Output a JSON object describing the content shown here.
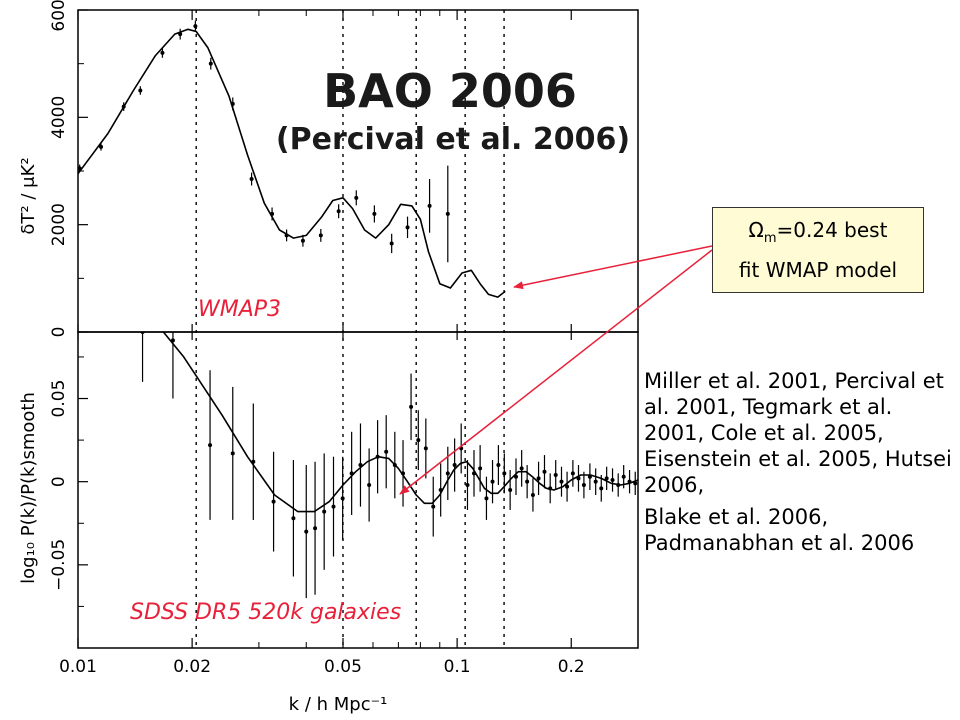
{
  "title": "BAO 2006",
  "subtitle": "(Percival et al. 2006)",
  "annotation_box": {
    "symbol": "Ω",
    "subscript": "m",
    "line1_rest": "=0.24 best",
    "line2": "fit WMAP model"
  },
  "references": [
    "Miller et al. 2001, Percival et al. 2001, Tegmark et al. 2001, Cole et al. 2005, Eisenstein et al. 2005, Hutsei 2006,",
    "Blake et al. 2006, Padmanabhan et al. 2006"
  ],
  "colors": {
    "panel_label": "#e8213a",
    "arrow": "#e8213a",
    "box_fill": "#fffbd5"
  },
  "chart_data": [
    {
      "type": "line",
      "panel_label": "WMAP3",
      "ylabel": "δT² / μK²",
      "x_scale": "log",
      "xlim": [
        0.01,
        0.3
      ],
      "ylim": [
        0,
        6000
      ],
      "y_ticks": [
        "0",
        "2000",
        "4000",
        "6000"
      ],
      "vertical_dotted_lines_k": [
        0.0205,
        0.05,
        0.078,
        0.105,
        0.133
      ],
      "series": [
        {
          "role": "model",
          "x": [
            0.01,
            0.012,
            0.014,
            0.016,
            0.018,
            0.0195,
            0.0205,
            0.022,
            0.025,
            0.028,
            0.031,
            0.034,
            0.037,
            0.04,
            0.044,
            0.047,
            0.05,
            0.053,
            0.057,
            0.061,
            0.066,
            0.071,
            0.076,
            0.08,
            0.084,
            0.09,
            0.096,
            0.103,
            0.109,
            0.115,
            0.121,
            0.128,
            0.134
          ],
          "y": [
            2950,
            3700,
            4500,
            5150,
            5550,
            5640,
            5600,
            5300,
            4400,
            3300,
            2400,
            1900,
            1750,
            1800,
            2150,
            2450,
            2500,
            2300,
            1900,
            1750,
            2000,
            2380,
            2350,
            2100,
            1500,
            900,
            820,
            1100,
            1150,
            900,
            700,
            650,
            760
          ]
        },
        {
          "role": "data",
          "x": [
            0.0101,
            0.0115,
            0.0132,
            0.0146,
            0.0167,
            0.0186,
            0.0204,
            0.0224,
            0.0256,
            0.0287,
            0.0325,
            0.0355,
            0.0392,
            0.0437,
            0.0487,
            0.0542,
            0.0605,
            0.0672,
            0.074,
            0.0846,
            0.0945
          ],
          "y": [
            3050,
            3450,
            4200,
            4500,
            5200,
            5550,
            5700,
            5000,
            4250,
            2850,
            2200,
            1800,
            1700,
            1800,
            2250,
            2500,
            2200,
            1650,
            1950,
            2350,
            2200
          ],
          "err": [
            70,
            70,
            80,
            80,
            90,
            100,
            100,
            110,
            120,
            120,
            120,
            110,
            110,
            120,
            130,
            140,
            160,
            180,
            200,
            500,
            900
          ]
        }
      ]
    },
    {
      "type": "line",
      "panel_label": "SDSS DR5 520k galaxies",
      "xlabel": "k / h Mpc⁻¹",
      "ylabel": "log₁₀ P(k)/P(k)smooth",
      "x_scale": "log",
      "xlim": [
        0.01,
        0.3
      ],
      "ylim": [
        -0.1,
        0.09
      ],
      "x_ticks": [
        "0.01",
        "0.02",
        "0.05",
        "0.1",
        "0.2"
      ],
      "y_ticks": [
        "−0.05",
        "0",
        "0.05"
      ],
      "series": [
        {
          "role": "model",
          "x": [
            0.0168,
            0.019,
            0.021,
            0.024,
            0.028,
            0.033,
            0.038,
            0.042,
            0.046,
            0.05,
            0.054,
            0.058,
            0.062,
            0.066,
            0.07,
            0.074,
            0.078,
            0.082,
            0.086,
            0.09,
            0.094,
            0.098,
            0.102,
            0.106,
            0.11,
            0.114,
            0.118,
            0.123,
            0.128,
            0.133,
            0.139,
            0.145,
            0.152,
            0.158,
            0.165,
            0.172,
            0.18,
            0.19,
            0.2,
            0.212,
            0.225,
            0.24,
            0.255,
            0.27,
            0.285,
            0.3
          ],
          "y": [
            0.09,
            0.075,
            0.06,
            0.04,
            0.015,
            -0.008,
            -0.018,
            -0.018,
            -0.012,
            -0.002,
            0.006,
            0.012,
            0.015,
            0.014,
            0.008,
            0.0,
            -0.008,
            -0.013,
            -0.013,
            -0.008,
            0.0,
            0.007,
            0.011,
            0.012,
            0.008,
            0.002,
            -0.004,
            -0.007,
            -0.007,
            -0.003,
            0.002,
            0.006,
            0.006,
            0.003,
            -0.001,
            -0.004,
            -0.005,
            -0.003,
            0.001,
            0.004,
            0.004,
            0.002,
            -0.001,
            -0.002,
            -0.001,
            0.001
          ]
        },
        {
          "role": "data",
          "x": [
            0.0148,
            0.0178,
            0.0223,
            0.0256,
            0.029,
            0.0328,
            0.037,
            0.04,
            0.0422,
            0.0446,
            0.0472,
            0.0499,
            0.0527,
            0.0556,
            0.0586,
            0.0617,
            0.065,
            0.0685,
            0.072,
            0.0756,
            0.079,
            0.0827,
            0.0865,
            0.0905,
            0.0945,
            0.0985,
            0.1025,
            0.1065,
            0.1108,
            0.115,
            0.1195,
            0.124,
            0.1285,
            0.1332,
            0.138,
            0.143,
            0.148,
            0.153,
            0.1585,
            0.164,
            0.17,
            0.176,
            0.182,
            0.1885,
            0.195,
            0.202,
            0.209,
            0.216,
            0.224,
            0.232,
            0.24,
            0.248,
            0.257,
            0.266,
            0.275,
            0.285,
            0.295
          ],
          "y": [
            0.09,
            0.085,
            0.022,
            0.017,
            0.012,
            -0.012,
            -0.022,
            -0.03,
            -0.028,
            -0.018,
            -0.015,
            -0.01,
            0.005,
            0.01,
            -0.002,
            0.015,
            0.018,
            0.01,
            0.005,
            0.045,
            0.025,
            0.02,
            -0.015,
            -0.005,
            0.005,
            0.01,
            0.02,
            -0.002,
            0.005,
            0.008,
            -0.01,
            0.0,
            0.01,
            0.005,
            -0.005,
            0.003,
            0.008,
            0.0,
            -0.008,
            0.002,
            0.006,
            -0.004,
            0.004,
            0.0,
            -0.003,
            0.005,
            0.002,
            -0.002,
            0.003,
            0.0,
            -0.004,
            0.002,
            0.001,
            -0.002,
            0.003,
            0.0,
            -0.001
          ],
          "err": [
            0.03,
            0.035,
            0.045,
            0.04,
            0.035,
            0.03,
            0.035,
            0.04,
            0.04,
            0.035,
            0.03,
            0.025,
            0.025,
            0.025,
            0.022,
            0.022,
            0.022,
            0.02,
            0.02,
            0.02,
            0.018,
            0.018,
            0.018,
            0.016,
            0.016,
            0.016,
            0.015,
            0.015,
            0.014,
            0.014,
            0.013,
            0.013,
            0.012,
            0.012,
            0.012,
            0.011,
            0.011,
            0.01,
            0.01,
            0.01,
            0.01,
            0.009,
            0.009,
            0.009,
            0.009,
            0.008,
            0.008,
            0.008,
            0.008,
            0.008,
            0.008,
            0.007,
            0.007,
            0.007,
            0.007,
            0.007,
            0.007
          ]
        }
      ]
    }
  ]
}
